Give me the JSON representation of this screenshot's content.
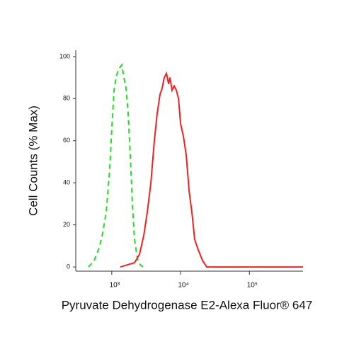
{
  "chart_data": {
    "type": "line",
    "xlabel": "Pyruvate Dehydrogenase E2-Alexa Fluor® 647",
    "ylabel": "Cell Counts (% Max)",
    "xscale": "log",
    "xlim": [
      300,
      600000
    ],
    "ylim": [
      -2,
      103
    ],
    "xticks": [
      {
        "value": 1000,
        "label": "10³"
      },
      {
        "value": 10000,
        "label": "10⁴"
      },
      {
        "value": 100000,
        "label": "10⁵"
      }
    ],
    "yticks": [
      0,
      20,
      40,
      60,
      80,
      100
    ],
    "series": [
      {
        "color": "#22dd22",
        "dash": true,
        "x": [
          459,
          555,
          656,
          738,
          830,
          935,
          1005,
          1079,
          1157,
          1242,
          1333,
          1399,
          1502,
          1611,
          1730,
          1858,
          1995,
          2142,
          2355,
          2589,
          2844
        ],
        "values": [
          0,
          3,
          9,
          16,
          26,
          47,
          67,
          84,
          90,
          94,
          95,
          96,
          90,
          85,
          73,
          53,
          30,
          13,
          4,
          1,
          0
        ]
      },
      {
        "color": "#ee2222",
        "dash": false,
        "x": [
          1333,
          1690,
          2142,
          2529,
          2917,
          3283,
          3698,
          4159,
          4571,
          5023,
          5395,
          5794,
          6223,
          6683,
          7000,
          7516,
          8072,
          8670,
          9311,
          10000,
          10990,
          12080,
          13280,
          14590,
          16030,
          18060,
          20840,
          23990,
          29040,
          600000
        ],
        "values": [
          0,
          1,
          2,
          6,
          15,
          26,
          40,
          60,
          73,
          82,
          85,
          90,
          92,
          87,
          90,
          84,
          86,
          84,
          80,
          68,
          62,
          53,
          36,
          26,
          13,
          8,
          3,
          0,
          0,
          0
        ]
      }
    ]
  }
}
